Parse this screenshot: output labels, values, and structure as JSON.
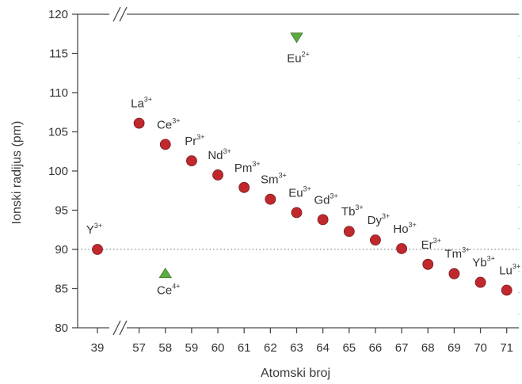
{
  "chart_data": {
    "type": "scatter",
    "xlabel": "Atomski broj",
    "ylabel": "Ionski radijus (pm)",
    "ylim": [
      80,
      120
    ],
    "yticks": [
      80,
      85,
      90,
      95,
      100,
      105,
      110,
      115,
      120
    ],
    "xticks": [
      "39",
      "57",
      "58",
      "59",
      "60",
      "61",
      "62",
      "63",
      "64",
      "65",
      "66",
      "67",
      "68",
      "69",
      "70",
      "71"
    ],
    "x_axis_break": true,
    "y_axis_break": true,
    "reference_line": {
      "y": 90,
      "style": "dotted"
    },
    "colors": {
      "trivalent": "#c0282d",
      "ce4": "#5cac3f",
      "eu2": "#5cac3f"
    },
    "series": [
      {
        "marker": "circle",
        "points": [
          {
            "x": "39",
            "y": 90.0,
            "ion": "Y",
            "charge": "3+"
          },
          {
            "x": "57",
            "y": 106.1,
            "ion": "La",
            "charge": "3+"
          },
          {
            "x": "58",
            "y": 103.4,
            "ion": "Ce",
            "charge": "3+"
          },
          {
            "x": "59",
            "y": 101.3,
            "ion": "Pr",
            "charge": "3+"
          },
          {
            "x": "60",
            "y": 99.5,
            "ion": "Nd",
            "charge": "3+"
          },
          {
            "x": "61",
            "y": 97.9,
            "ion": "Pm",
            "charge": "3+"
          },
          {
            "x": "62",
            "y": 96.4,
            "ion": "Sm",
            "charge": "3+"
          },
          {
            "x": "63",
            "y": 94.7,
            "ion": "Eu",
            "charge": "3+"
          },
          {
            "x": "64",
            "y": 93.8,
            "ion": "Gd",
            "charge": "3+"
          },
          {
            "x": "65",
            "y": 92.3,
            "ion": "Tb",
            "charge": "3+"
          },
          {
            "x": "66",
            "y": 91.2,
            "ion": "Dy",
            "charge": "3+"
          },
          {
            "x": "67",
            "y": 90.1,
            "ion": "Ho",
            "charge": "3+"
          },
          {
            "x": "68",
            "y": 88.1,
            "ion": "Er",
            "charge": "3+"
          },
          {
            "x": "69",
            "y": 86.9,
            "ion": "Tm",
            "charge": "3+"
          },
          {
            "x": "70",
            "y": 85.8,
            "ion": "Yb",
            "charge": "3+"
          },
          {
            "x": "71",
            "y": 84.8,
            "ion": "Lu",
            "charge": "3+"
          }
        ]
      },
      {
        "marker": "triangle-up",
        "points": [
          {
            "x": "58",
            "y": 87.0,
            "ion": "Ce",
            "charge": "4+"
          }
        ]
      },
      {
        "marker": "triangle-down",
        "points": [
          {
            "x": "63",
            "y": 117.0,
            "ion": "Eu",
            "charge": "2+"
          }
        ]
      }
    ]
  }
}
